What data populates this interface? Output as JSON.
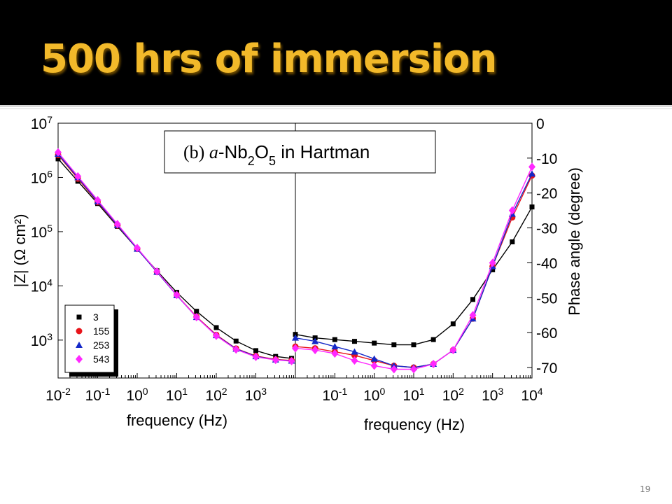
{
  "slide": {
    "title": "500 hrs of immersion",
    "page_number": "19",
    "accent_color": "#f2b92a"
  },
  "chart_data": [
    {
      "type": "scatter",
      "panel": "left",
      "xlabel": "frequency (Hz)",
      "ylabel": "|Z| (Ω cm²)",
      "xscale": "log",
      "yscale": "log",
      "xlim": [
        0.01,
        10000
      ],
      "ylim": [
        200,
        10000000
      ],
      "xticks": [
        0.01,
        0.1,
        1,
        10,
        100,
        1000
      ],
      "yticks": [
        1000,
        10000,
        100000,
        1000000,
        10000000
      ],
      "legend_position": "bottom-left",
      "series": [
        {
          "name": "3",
          "color": "#000000",
          "marker": "square",
          "x": [
            0.01,
            0.0316,
            0.1,
            0.316,
            1,
            3.16,
            10,
            31.6,
            100,
            316,
            1000,
            3160,
            8000
          ],
          "y": [
            2200000,
            850000,
            330000,
            125000,
            48000,
            19000,
            7600,
            3400,
            1700,
            960,
            640,
            500,
            460
          ]
        },
        {
          "name": "155",
          "color": "#e8141a",
          "marker": "circle",
          "x": [
            0.01,
            0.0316,
            0.1,
            0.316,
            1,
            3.16,
            10,
            31.6,
            100,
            316,
            1000,
            3160,
            8000
          ],
          "y": [
            2600000,
            950000,
            350000,
            130000,
            48000,
            18000,
            6800,
            2700,
            1250,
            700,
            510,
            440,
            420
          ]
        },
        {
          "name": "253",
          "color": "#1428c8",
          "marker": "triangle",
          "x": [
            0.01,
            0.0316,
            0.1,
            0.316,
            1,
            3.16,
            10,
            31.6,
            100,
            316,
            1000,
            3160,
            8000
          ],
          "y": [
            2700000,
            1000000,
            360000,
            132000,
            48000,
            18000,
            6700,
            2650,
            1220,
            690,
            500,
            435,
            415
          ]
        },
        {
          "name": "543",
          "color": "#ff28ff",
          "marker": "diamond",
          "x": [
            0.01,
            0.0316,
            0.1,
            0.316,
            1,
            3.16,
            10,
            31.6,
            100,
            316,
            1000,
            3160,
            8000
          ],
          "y": [
            2900000,
            1050000,
            380000,
            138000,
            50000,
            18500,
            6800,
            2650,
            1200,
            670,
            490,
            430,
            410
          ]
        }
      ]
    },
    {
      "type": "scatter",
      "panel": "right",
      "annotation": {
        "prefix": "(b)",
        "species": "a",
        "formula": [
          "-Nb",
          "2",
          "O",
          "5",
          " in Hartman"
        ]
      },
      "xlabel": "frequency (Hz)",
      "ylabel": "Phase angle (degree)",
      "xscale": "log",
      "xlim": [
        0.01,
        10000
      ],
      "ylim": [
        -73,
        0
      ],
      "xticks": [
        0.1,
        1,
        10,
        100,
        1000,
        10000
      ],
      "yticks": [
        0,
        -10,
        -20,
        -30,
        -40,
        -50,
        -60,
        -70
      ],
      "series": [
        {
          "name": "3",
          "color": "#000000",
          "marker": "square",
          "x": [
            0.01,
            0.0316,
            0.1,
            0.316,
            1,
            3.16,
            10,
            31.6,
            100,
            316,
            1000,
            3160,
            10000
          ],
          "y": [
            -60.5,
            -61.5,
            -62,
            -62.5,
            -63,
            -63.5,
            -63.5,
            -62,
            -57.5,
            -50.5,
            -42,
            -34,
            -24
          ]
        },
        {
          "name": "155",
          "color": "#e8141a",
          "marker": "circle",
          "x": [
            0.01,
            0.0316,
            0.1,
            0.316,
            1,
            3.16,
            10,
            31.6,
            100,
            316,
            1000,
            3160,
            10000
          ],
          "y": [
            -64,
            -64.5,
            -65.5,
            -66.5,
            -68,
            -69.5,
            -70,
            -69,
            -65,
            -56,
            -41,
            -27,
            -15
          ]
        },
        {
          "name": "253",
          "color": "#1428c8",
          "marker": "triangle",
          "x": [
            0.01,
            0.0316,
            0.1,
            0.316,
            1,
            3.16,
            10,
            31.6,
            100,
            316,
            1000,
            3160,
            10000
          ],
          "y": [
            -61.5,
            -62.5,
            -64,
            -65.5,
            -67.5,
            -69.5,
            -70,
            -69,
            -65,
            -56,
            -41,
            -26,
            -14.5
          ]
        },
        {
          "name": "543",
          "color": "#ff28ff",
          "marker": "diamond",
          "x": [
            0.01,
            0.0316,
            0.1,
            0.316,
            1,
            3.16,
            10,
            31.6,
            100,
            316,
            1000,
            3160,
            10000
          ],
          "y": [
            -64.5,
            -65,
            -66,
            -68,
            -69.5,
            -70.5,
            -70.5,
            -69,
            -65,
            -55,
            -40,
            -25,
            -12.5
          ]
        }
      ]
    }
  ]
}
